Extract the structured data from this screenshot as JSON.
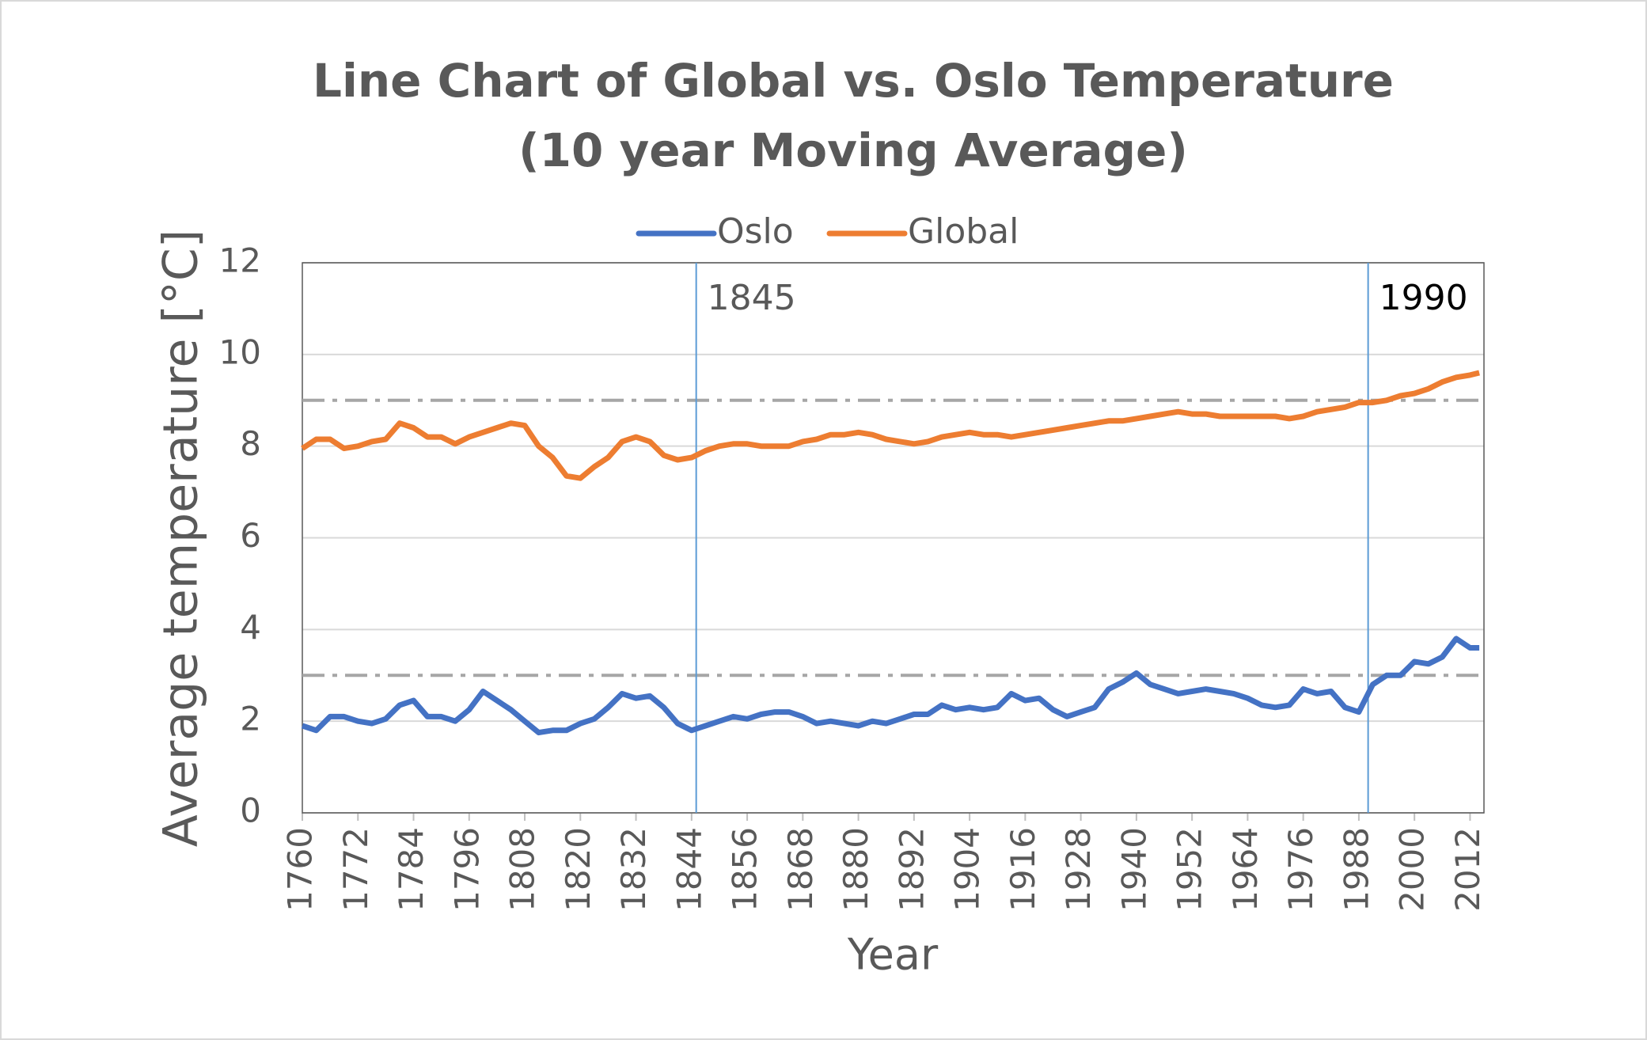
{
  "chart_data": {
    "type": "line",
    "title": "Line Chart of Global vs. Oslo Temperature",
    "subtitle": "(10 year Moving Average)",
    "x_label": "Year",
    "y_label": "Average temperature [°C]",
    "x": [
      1760,
      1763,
      1766,
      1769,
      1772,
      1775,
      1778,
      1781,
      1784,
      1787,
      1790,
      1793,
      1796,
      1799,
      1802,
      1805,
      1808,
      1811,
      1814,
      1817,
      1820,
      1823,
      1826,
      1829,
      1832,
      1835,
      1838,
      1841,
      1844,
      1847,
      1850,
      1853,
      1856,
      1859,
      1862,
      1865,
      1868,
      1871,
      1874,
      1877,
      1880,
      1883,
      1886,
      1889,
      1892,
      1895,
      1898,
      1901,
      1904,
      1907,
      1910,
      1913,
      1916,
      1919,
      1922,
      1925,
      1928,
      1931,
      1934,
      1937,
      1940,
      1943,
      1946,
      1949,
      1952,
      1955,
      1958,
      1961,
      1964,
      1967,
      1970,
      1973,
      1976,
      1979,
      1982,
      1985,
      1988,
      1991,
      1994,
      1997,
      2000,
      2003,
      2006,
      2009,
      2012,
      2014
    ],
    "series": [
      {
        "name": "Oslo",
        "color": "#4472c4",
        "values": [
          1.9,
          1.8,
          2.1,
          2.1,
          2.0,
          1.95,
          2.05,
          2.35,
          2.45,
          2.1,
          2.1,
          2.0,
          2.25,
          2.65,
          2.45,
          2.25,
          2.0,
          1.75,
          1.8,
          1.8,
          1.95,
          2.05,
          2.3,
          2.6,
          2.5,
          2.55,
          2.3,
          1.95,
          1.8,
          1.9,
          2.0,
          2.1,
          2.05,
          2.15,
          2.2,
          2.2,
          2.1,
          1.95,
          2.0,
          1.95,
          1.9,
          2.0,
          1.95,
          2.05,
          2.15,
          2.15,
          2.35,
          2.25,
          2.3,
          2.25,
          2.3,
          2.6,
          2.45,
          2.5,
          2.25,
          2.1,
          2.2,
          2.3,
          2.7,
          2.85,
          3.05,
          2.8,
          2.7,
          2.6,
          2.65,
          2.7,
          2.65,
          2.6,
          2.5,
          2.35,
          2.3,
          2.35,
          2.7,
          2.6,
          2.65,
          2.3,
          2.2,
          2.8,
          3.0,
          3.0,
          3.3,
          3.25,
          3.4,
          3.8,
          3.6,
          3.6
        ]
      },
      {
        "name": "Global",
        "color": "#ed7d31",
        "values": [
          7.95,
          8.15,
          8.15,
          7.95,
          8.0,
          8.1,
          8.15,
          8.5,
          8.4,
          8.2,
          8.2,
          8.05,
          8.2,
          8.3,
          8.4,
          8.5,
          8.45,
          8.0,
          7.75,
          7.35,
          7.3,
          7.55,
          7.75,
          8.1,
          8.2,
          8.1,
          7.8,
          7.7,
          7.75,
          7.9,
          8.0,
          8.05,
          8.05,
          8.0,
          8.0,
          8.0,
          8.1,
          8.15,
          8.25,
          8.25,
          8.3,
          8.25,
          8.15,
          8.1,
          8.05,
          8.1,
          8.2,
          8.25,
          8.3,
          8.25,
          8.25,
          8.2,
          8.25,
          8.3,
          8.35,
          8.4,
          8.45,
          8.5,
          8.55,
          8.55,
          8.6,
          8.65,
          8.7,
          8.75,
          8.7,
          8.7,
          8.65,
          8.65,
          8.65,
          8.65,
          8.65,
          8.6,
          8.65,
          8.75,
          8.8,
          8.85,
          8.95,
          8.95,
          9.0,
          9.1,
          9.15,
          9.25,
          9.4,
          9.5,
          9.55,
          9.6
        ]
      }
    ],
    "xlim": [
      1760,
      2015
    ],
    "xticks": [
      1760,
      1772,
      1784,
      1796,
      1808,
      1820,
      1832,
      1844,
      1856,
      1868,
      1880,
      1892,
      1904,
      1916,
      1928,
      1940,
      1952,
      1964,
      1976,
      1988,
      2000,
      2012
    ],
    "ylim": [
      0,
      12
    ],
    "yticks": [
      0,
      2,
      4,
      6,
      8,
      10,
      12
    ],
    "grid": true,
    "hlines": [
      9,
      3
    ],
    "vlines": [
      1845,
      1990
    ]
  }
}
